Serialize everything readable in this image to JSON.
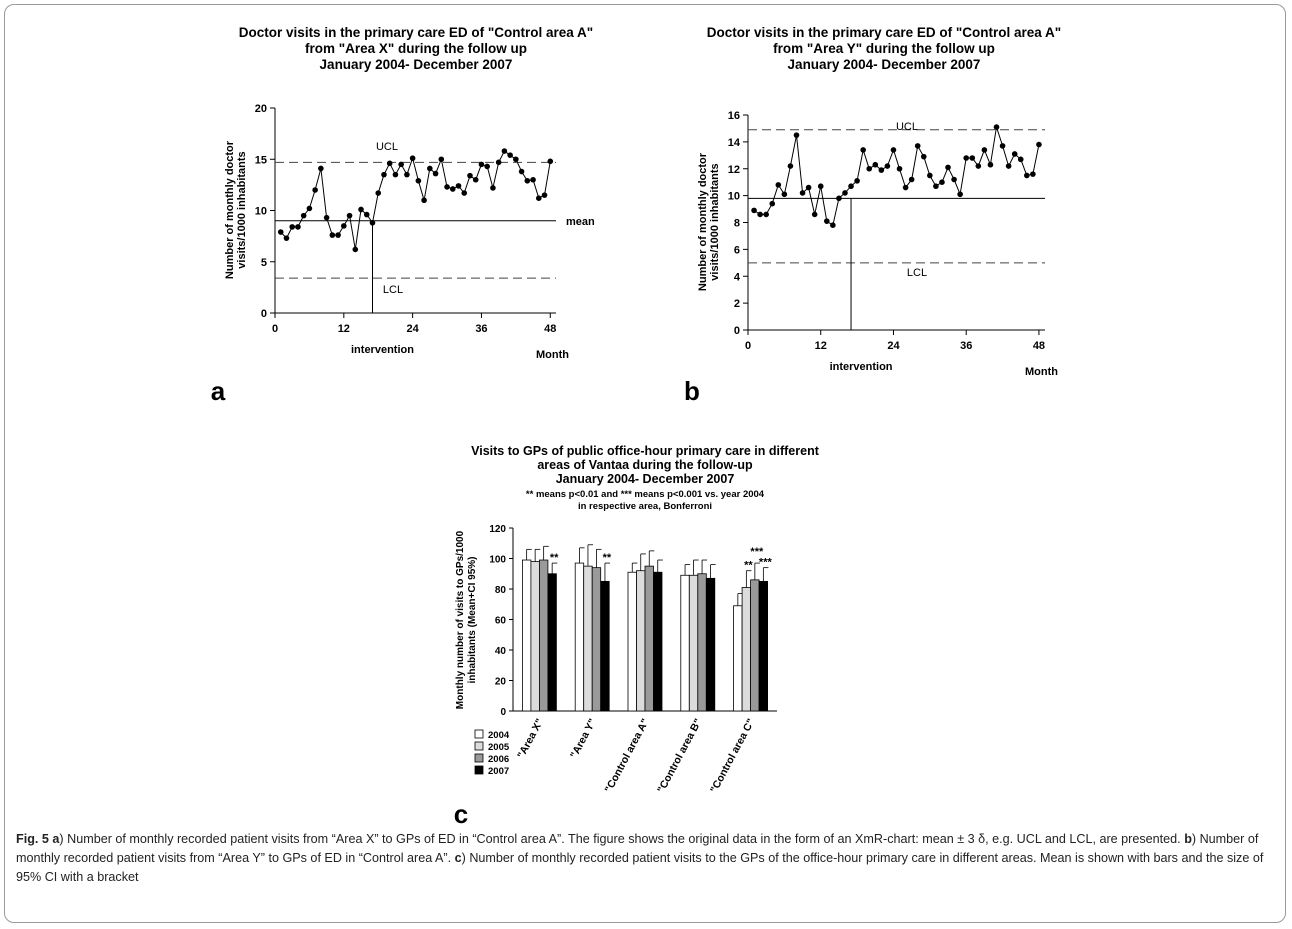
{
  "caption": {
    "fig_label": "Fig. 5",
    "a_label": "a",
    "a_text": ") Number of monthly recorded patient visits from “Area X” to GPs of ED in “Control area A”. The figure shows the original data in the form of an XmR-chart: mean ± 3 δ, e.g. UCL and LCL, are presented. ",
    "b_label": "b",
    "b_text": ") Number of monthly recorded patient visits from “Area Y” to GPs of ED in “Control area A”. ",
    "c_label": "c",
    "c_text": ") Number of monthly recorded patient visits to the GPs of the office-hour primary care in different areas. Mean is shown with bars and the size of 95% CI with a bracket"
  },
  "chart_data": [
    {
      "id": "a",
      "type": "line",
      "panel_label": "a",
      "title": [
        "Doctor visits in the primary care ED of \"Control area A\"",
        "from \"Area X\" during the follow up",
        "January 2004- December 2007"
      ],
      "ylabel": [
        "Number of monthly doctor",
        "visits/1000 inhabitants"
      ],
      "xlabel": "Month",
      "x_ticks": [
        0,
        12,
        24,
        36,
        48
      ],
      "y_ticks": [
        0,
        5,
        10,
        15,
        20
      ],
      "xlim": [
        0,
        49
      ],
      "ylim": [
        0,
        20
      ],
      "x": [
        1,
        2,
        3,
        4,
        5,
        6,
        7,
        8,
        9,
        10,
        11,
        12,
        13,
        14,
        15,
        16,
        17,
        18,
        19,
        20,
        21,
        22,
        23,
        24,
        25,
        26,
        27,
        28,
        29,
        30,
        31,
        32,
        33,
        34,
        35,
        36,
        37,
        38,
        39,
        40,
        41,
        42,
        43,
        44,
        45,
        46,
        47,
        48
      ],
      "y": [
        7.9,
        7.3,
        8.4,
        8.4,
        9.5,
        10.2,
        12.0,
        14.1,
        9.3,
        7.6,
        7.6,
        8.5,
        9.5,
        6.2,
        10.1,
        9.6,
        8.8,
        11.7,
        13.5,
        14.6,
        13.5,
        14.5,
        13.5,
        15.1,
        12.9,
        11.0,
        14.1,
        13.6,
        15.0,
        12.3,
        12.1,
        12.4,
        11.7,
        13.4,
        13.0,
        14.5,
        14.3,
        12.2,
        14.7,
        15.8,
        15.4,
        15.0,
        13.8,
        12.9,
        13.0,
        11.2,
        11.5,
        14.8
      ],
      "mean": 9.0,
      "ucl": 14.7,
      "lcl": 3.4,
      "mean_label": "mean",
      "ucl_label": "UCL",
      "lcl_label": "LCL",
      "intervention_month": 17,
      "intervention_label": "intervention"
    },
    {
      "id": "b",
      "type": "line",
      "panel_label": "b",
      "title": [
        "Doctor visits in the primary care ED of \"Control area A\"",
        "from \"Area Y\" during the follow up",
        "January 2004- December 2007"
      ],
      "ylabel": [
        "Number of monthly doctor",
        "visits/1000 inhabitants"
      ],
      "xlabel": "Month",
      "x_ticks": [
        0,
        12,
        24,
        36,
        48
      ],
      "y_ticks": [
        0,
        2,
        4,
        6,
        8,
        10,
        12,
        14,
        16
      ],
      "xlim": [
        0,
        49
      ],
      "ylim": [
        0,
        16
      ],
      "x": [
        1,
        2,
        3,
        4,
        5,
        6,
        7,
        8,
        9,
        10,
        11,
        12,
        13,
        14,
        15,
        16,
        17,
        18,
        19,
        20,
        21,
        22,
        23,
        24,
        25,
        26,
        27,
        28,
        29,
        30,
        31,
        32,
        33,
        34,
        35,
        36,
        37,
        38,
        39,
        40,
        41,
        42,
        43,
        44,
        45,
        46,
        47,
        48
      ],
      "y": [
        8.9,
        8.6,
        8.6,
        9.4,
        10.8,
        10.1,
        12.2,
        14.5,
        10.2,
        10.6,
        8.6,
        10.7,
        8.1,
        7.8,
        9.8,
        10.2,
        10.7,
        11.1,
        13.4,
        12.0,
        12.3,
        11.9,
        12.2,
        13.4,
        12.0,
        10.6,
        11.2,
        13.7,
        12.9,
        11.5,
        10.7,
        11.0,
        12.1,
        11.2,
        10.1,
        12.8,
        12.8,
        12.2,
        13.4,
        12.3,
        15.1,
        13.7,
        12.2,
        13.1,
        12.7,
        11.5,
        11.6,
        13.8
      ],
      "mean": 9.8,
      "ucl": 14.9,
      "lcl": 5.0,
      "ucl_label": "UCL",
      "lcl_label": "LCL",
      "intervention_month": 17,
      "intervention_label": "intervention"
    },
    {
      "id": "c",
      "type": "bar",
      "panel_label": "c",
      "title": [
        "Visits to GPs of public office-hour primary care in different",
        "areas of Vantaa during the follow-up",
        "January 2004- December 2007"
      ],
      "subtitle": [
        "** means p<0.01 and *** means p<0.001 vs. year 2004",
        "in respective area, Bonferroni"
      ],
      "ylabel": [
        "Monthly number of visits to GPs/1000",
        "inhabitants (Mean+CI 95%)"
      ],
      "categories": [
        "\"Area X\"",
        "\"Area Y\"",
        "\"Control area A\"",
        "\"Control area B\"",
        "\"Control area C\""
      ],
      "y_ticks": [
        0,
        20,
        40,
        60,
        80,
        100,
        120
      ],
      "ylim": [
        0,
        120
      ],
      "series": [
        {
          "name": "2004",
          "color": "#ffffff",
          "values": [
            99,
            97,
            91,
            89,
            69
          ],
          "ci_upper": [
            106,
            107,
            97,
            96,
            77
          ]
        },
        {
          "name": "2005",
          "color": "#dcdcdc",
          "values": [
            98,
            95,
            92,
            89,
            81
          ],
          "ci_upper": [
            106,
            109,
            103,
            99,
            92
          ]
        },
        {
          "name": "2006",
          "color": "#9a9a9a",
          "values": [
            99,
            94,
            95,
            90,
            86
          ],
          "ci_upper": [
            108,
            106,
            105,
            99,
            97
          ]
        },
        {
          "name": "2007",
          "color": "#000000",
          "values": [
            90,
            85,
            91,
            87,
            85
          ],
          "ci_upper": [
            97,
            97,
            99,
            96,
            94
          ]
        }
      ],
      "significance": [
        {
          "category": 0,
          "series": 3,
          "text": "**"
        },
        {
          "category": 1,
          "series": 3,
          "text": "**"
        },
        {
          "category": 4,
          "series": 1,
          "text": "**"
        },
        {
          "category": 4,
          "series": 2,
          "text": "***"
        },
        {
          "category": 4,
          "series": 3,
          "text": "***"
        }
      ]
    }
  ]
}
